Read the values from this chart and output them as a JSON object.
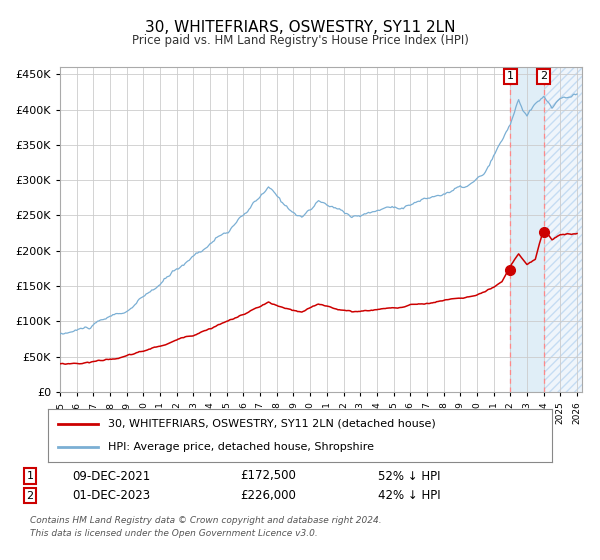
{
  "title": "30, WHITEFRIARS, OSWESTRY, SY11 2LN",
  "subtitle": "Price paid vs. HM Land Registry's House Price Index (HPI)",
  "legend_line1": "30, WHITEFRIARS, OSWESTRY, SY11 2LN (detached house)",
  "legend_line2": "HPI: Average price, detached house, Shropshire",
  "transaction1_date": "09-DEC-2021",
  "transaction1_price": 172500,
  "transaction1_label": "52% ↓ HPI",
  "transaction1_year": 2022.0,
  "transaction2_date": "01-DEC-2023",
  "transaction2_price": 226000,
  "transaction2_label": "42% ↓ HPI",
  "transaction2_year": 2024.0,
  "hpi_color": "#7bafd4",
  "price_color": "#cc0000",
  "dot_color": "#cc0000",
  "footnote1": "Contains HM Land Registry data © Crown copyright and database right 2024.",
  "footnote2": "This data is licensed under the Open Government Licence v3.0.",
  "xlim_start": 1995.0,
  "xlim_end": 2026.0,
  "ylim_max": 460000,
  "ylim_min": 0
}
